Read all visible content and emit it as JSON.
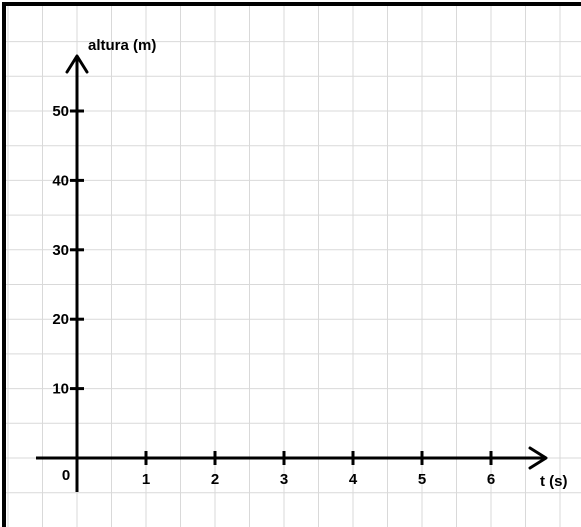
{
  "chart_data": {
    "type": "line",
    "title": "",
    "xlabel": "t (s)",
    "ylabel": "altura (m)",
    "xlim": [
      0,
      6
    ],
    "ylim": [
      0,
      50
    ],
    "x_ticks": [
      {
        "value": 0,
        "label": "0"
      },
      {
        "value": 1,
        "label": "1"
      },
      {
        "value": 2,
        "label": "2"
      },
      {
        "value": 3,
        "label": "3"
      },
      {
        "value": 4,
        "label": "4"
      },
      {
        "value": 5,
        "label": "5"
      },
      {
        "value": 6,
        "label": "6"
      }
    ],
    "y_ticks": [
      {
        "value": 10,
        "label": "10"
      },
      {
        "value": 20,
        "label": "20"
      },
      {
        "value": 30,
        "label": "30"
      },
      {
        "value": 40,
        "label": "40"
      },
      {
        "value": 50,
        "label": "50"
      }
    ],
    "series": [],
    "grid": true,
    "colors": {
      "grid": "#d9d9d9",
      "axis": "#000000",
      "frame": "#000000",
      "background": "#ffffff"
    }
  }
}
